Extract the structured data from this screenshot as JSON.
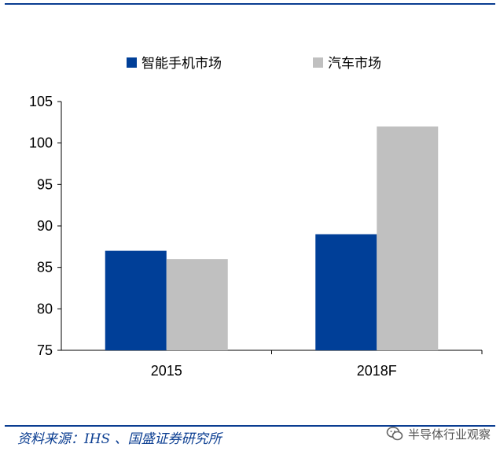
{
  "chart_data": {
    "type": "bar",
    "categories": [
      "2015",
      "2018F"
    ],
    "series": [
      {
        "name": "智能手机市场",
        "color": "#003f98",
        "values": [
          87,
          89
        ]
      },
      {
        "name": "汽车市场",
        "color": "#c0c0c0",
        "values": [
          86,
          102
        ]
      }
    ],
    "ylim": [
      75,
      105
    ],
    "yticks": [
      75,
      80,
      85,
      90,
      95,
      100,
      105
    ],
    "legend_position": "top",
    "grid": false
  },
  "footer": {
    "source": "资料来源：IHS 、国盛证券研究所",
    "watermark": "半导体行业观察"
  }
}
